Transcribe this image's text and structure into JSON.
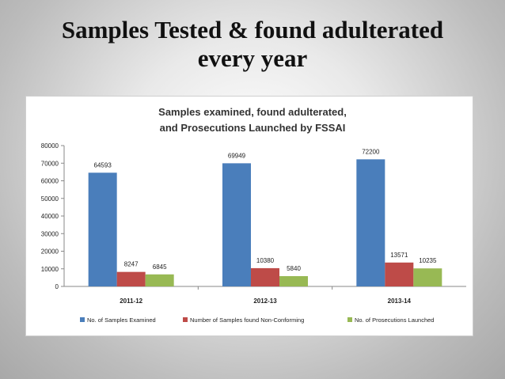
{
  "slide": {
    "title_line1": "Samples Tested & found adulterated",
    "title_line2": "every year"
  },
  "chart_data": {
    "type": "bar",
    "title_line1": "Samples examined, found adulterated,",
    "title_line2": "and Prosecutions Launched by FSSAI",
    "categories": [
      "2011-12",
      "2012-13",
      "2013-14"
    ],
    "series": [
      {
        "name": "No. of Samples Examined",
        "values": [
          64593,
          69949,
          72200
        ],
        "color": "#4a7ebb"
      },
      {
        "name": "Number of Samples found Non-Conforming",
        "values": [
          8247,
          10380,
          13571
        ],
        "color": "#be4b48"
      },
      {
        "name": "No. of Prosecutions Launched",
        "values": [
          6845,
          5840,
          10235
        ],
        "color": "#98b954"
      }
    ],
    "ylim": [
      0,
      80000
    ],
    "yticks": [
      0,
      10000,
      20000,
      30000,
      40000,
      50000,
      60000,
      70000,
      80000
    ],
    "grid": false,
    "legend": "bottom"
  }
}
